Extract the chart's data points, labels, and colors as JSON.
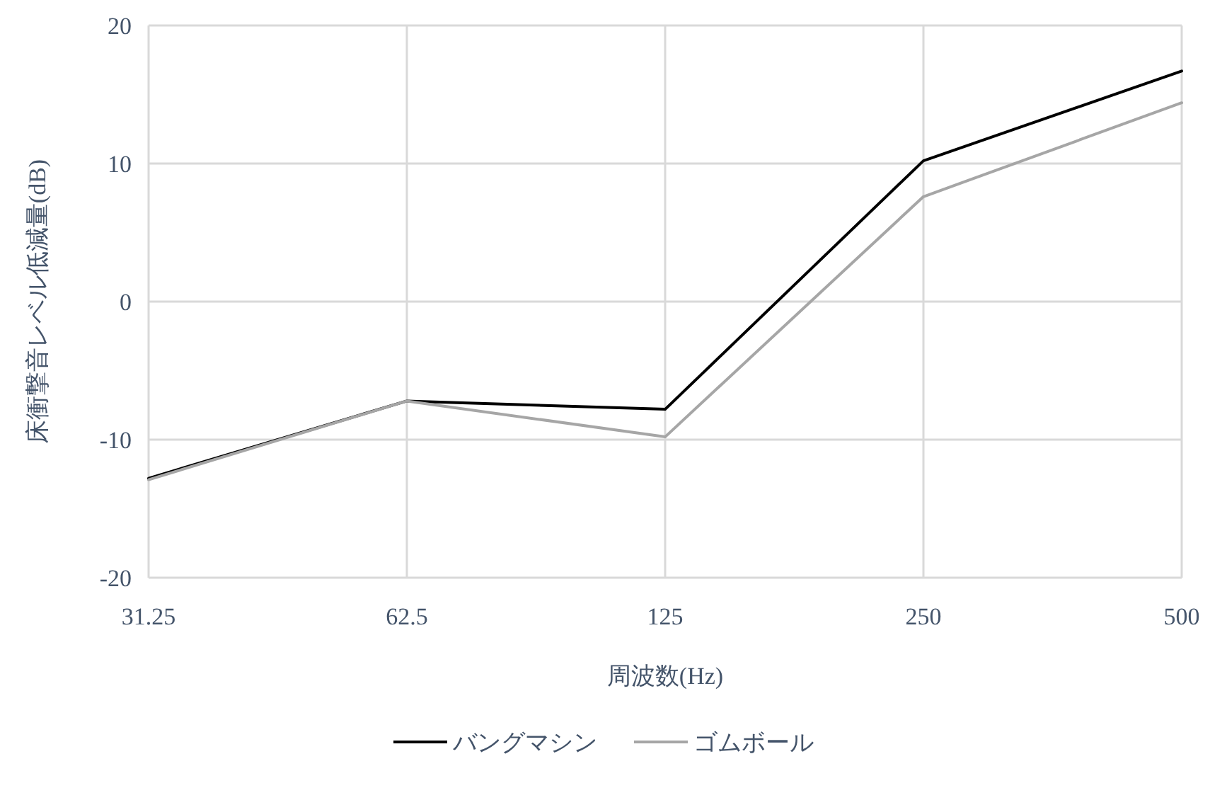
{
  "chart_data": {
    "type": "line",
    "xlabel": "周波数(Hz)",
    "ylabel": "床衝撃音レベル低減量(dB)",
    "categories": [
      "31.25",
      "62.5",
      "125",
      "250",
      "500"
    ],
    "series": [
      {
        "name": "バングマシン",
        "color": "#000000",
        "values": [
          -12.8,
          -7.2,
          -7.8,
          10.2,
          16.7
        ]
      },
      {
        "name": "ゴムボール",
        "color": "#a6a6a6",
        "values": [
          -12.9,
          -7.2,
          -9.8,
          7.6,
          14.4
        ]
      }
    ],
    "ylim": [
      -20,
      20
    ],
    "yticks": [
      -20,
      -10,
      0,
      10,
      20
    ],
    "grid": true,
    "legend": "bottom",
    "marker": "none",
    "line_style": "solid"
  }
}
